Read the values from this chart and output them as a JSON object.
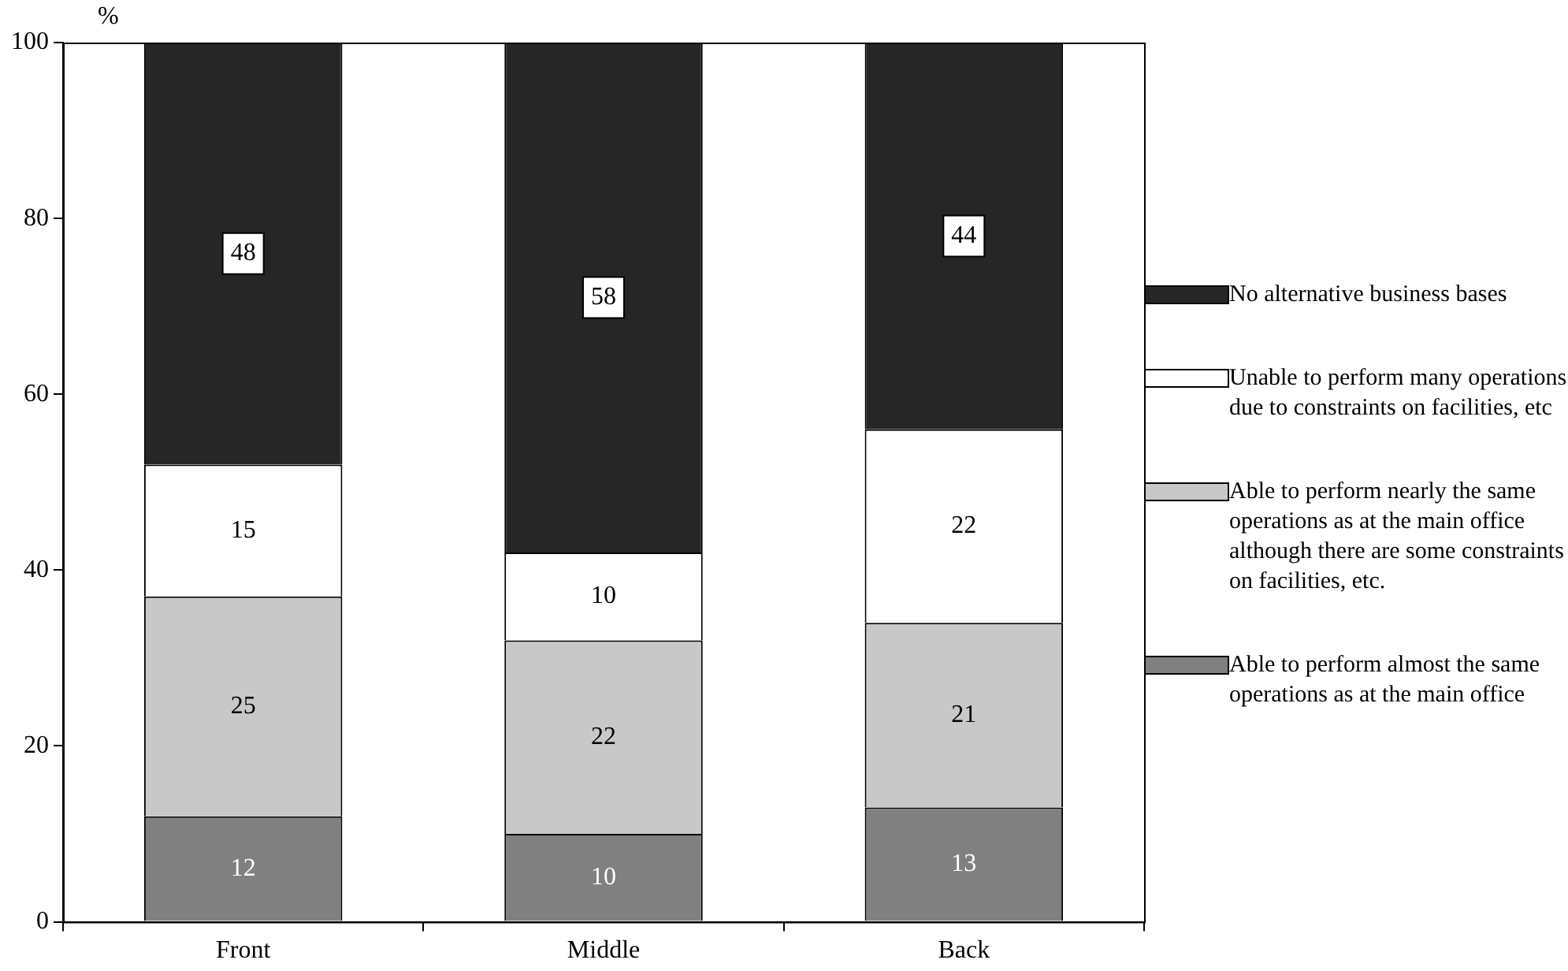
{
  "chart_data": {
    "type": "bar",
    "stacked": true,
    "ylabel": "%",
    "categories": [
      "Front",
      "Middle",
      "Back"
    ],
    "series": [
      {
        "name": "Able to perform almost the same operations as at the main office",
        "color": "#808080",
        "values": [
          12,
          10,
          13
        ]
      },
      {
        "name": "Able to perform nearly the same operations as at the main office although there are some constraints on facilities, etc.",
        "color": "#c8c8c8",
        "values": [
          25,
          22,
          21
        ]
      },
      {
        "name": "Unable to perform many operations due to constraints on facilities, etc",
        "color": "#ffffff",
        "values": [
          15,
          10,
          22
        ]
      },
      {
        "name": "No alternative business bases",
        "color": "#262626",
        "values": [
          48,
          58,
          44
        ]
      }
    ],
    "ylim": [
      0,
      100
    ],
    "yticks": [
      0,
      20,
      40,
      60,
      80,
      100
    ],
    "grid": false,
    "legend": "right",
    "data_labels": true
  }
}
